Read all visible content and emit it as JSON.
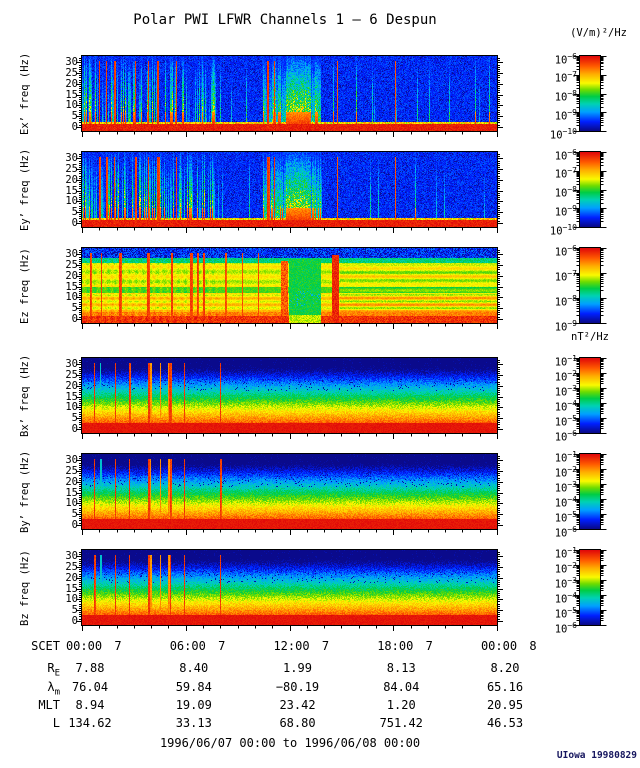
{
  "title": "Polar PWI LFWR Channels 1 — 6 Despun",
  "units": {
    "electric": "(V/m)²/Hz",
    "magnetic": "nT²/Hz"
  },
  "caption": "1996/06/07 00:00 to 1996/06/08 00:00",
  "credit": "UIowa 19980829",
  "chart_data": {
    "type": "heatmap",
    "title": "Polar PWI LFWR Channels 1 — 6 Despun",
    "subtitle": "Six stacked frequency-time spectrograms: despun electric (Ex', Ey', Ez) and magnetic (Bx', By', Bz) LFWR channels",
    "x_axis": {
      "label": "SCET",
      "start": "1996/06/07 00:00",
      "end": "1996/06/08 00:00",
      "major_ticks": [
        "00:00",
        "06:00",
        "12:00",
        "18:00",
        "00:00"
      ],
      "major_tick_days": [
        "7",
        "7",
        "7",
        "7",
        "8"
      ],
      "minor_tick_interval_hours": 1
    },
    "y_axis": {
      "units": "Hz",
      "ticks": [
        0,
        5,
        10,
        15,
        20,
        25,
        30
      ],
      "minor_tick_interval_hz": 1,
      "range_hz": [
        0,
        32
      ]
    },
    "legend_position": "right colorbars, one per panel",
    "panels": [
      {
        "id": "ex",
        "ylabel": "Ex’ freq (Hz)",
        "quantity": "electric",
        "colorbar_units": "(V/m)²/Hz",
        "colorbar_decade_labels": [
          -6,
          -7,
          -8,
          -9,
          -10
        ],
        "texture": "E",
        "seed": 11,
        "description": "Dark blue background; dense cyan/green burst columns 00:00–08:00 and around noon; intense red patch ~11:45–13:15; thin red artifact lines; solid red band below ~2 Hz"
      },
      {
        "id": "ey",
        "ylabel": "Ey’ freq (Hz)",
        "quantity": "electric",
        "colorbar_units": "(V/m)²/Hz",
        "colorbar_decade_labels": [
          -6,
          -7,
          -8,
          -9,
          -10
        ],
        "texture": "E",
        "seed": 12,
        "description": "Same morphology as Ex' panel"
      },
      {
        "id": "ez",
        "ylabel": "Ez freq (Hz)",
        "quantity": "electric",
        "colorbar_units": "(V/m)²/Hz",
        "colorbar_decade_labels": [
          -6,
          -7,
          -8,
          -9
        ],
        "texture": "Ez",
        "seed": 13,
        "description": "Broadband yellow/orange with green band near 12–15 Hz; dark blue above ~28 Hz; many red artifact lines before 08:00; green low-intensity interval ~12:00–13:45; solid red stripe ~14:30; horizontal orange striping after 15:00"
      },
      {
        "id": "bx",
        "ylabel": "Bx’ freq (Hz)",
        "quantity": "magnetic",
        "colorbar_units": "nT²/Hz",
        "colorbar_decade_labels": [
          -1,
          -2,
          -3,
          -4,
          -5,
          -6
        ],
        "texture": "B",
        "seed": 14,
        "description": "Smooth power-law falloff: red below ~4 Hz through yellow/green mid band to speckled dark blue above ~20 Hz; colored artifact lines before ~08:00"
      },
      {
        "id": "by",
        "ylabel": "By’ freq (Hz)",
        "quantity": "magnetic",
        "colorbar_units": "nT²/Hz",
        "colorbar_decade_labels": [
          -1,
          -2,
          -3,
          -4,
          -5,
          -6
        ],
        "texture": "B",
        "seed": 15,
        "description": "Same morphology as Bx' panel"
      },
      {
        "id": "bz",
        "ylabel": "Bz freq (Hz)",
        "quantity": "magnetic",
        "colorbar_units": "nT²/Hz",
        "colorbar_decade_labels": [
          -1,
          -2,
          -3,
          -4,
          -5,
          -6
        ],
        "texture": "B",
        "seed": 16,
        "description": "Same morphology as Bx' panel"
      }
    ],
    "ephemeris_rows": [
      {
        "label": "SCET",
        "sub": "",
        "type": "time",
        "times": [
          "00:00",
          "06:00",
          "12:00",
          "18:00",
          "00:00"
        ],
        "days": [
          "7",
          "7",
          "7",
          "7",
          "8"
        ]
      },
      {
        "label": "R",
        "sub": "E",
        "values": [
          "7.88",
          "8.40",
          "1.99",
          "8.13",
          "8.20"
        ]
      },
      {
        "label": "λ",
        "sub": "m",
        "values": [
          "76.04",
          "59.84",
          "-80.19",
          "84.04",
          "65.16"
        ]
      },
      {
        "label": "MLT",
        "sub": "",
        "values": [
          "8.94",
          "19.09",
          "23.42",
          "1.20",
          "20.95"
        ]
      },
      {
        "label": "L",
        "sub": "",
        "values": [
          "134.62",
          "33.13",
          "68.80",
          "751.42",
          "46.53"
        ]
      }
    ],
    "colormap": [
      {
        "v": 0.0,
        "hex": "#0a0a8c"
      },
      {
        "v": 0.12,
        "hex": "#0020ff"
      },
      {
        "v": 0.25,
        "hex": "#00a0ff"
      },
      {
        "v": 0.36,
        "hex": "#00d2b4"
      },
      {
        "v": 0.46,
        "hex": "#00cd46"
      },
      {
        "v": 0.55,
        "hex": "#6edc00"
      },
      {
        "v": 0.64,
        "hex": "#fafa00"
      },
      {
        "v": 0.76,
        "hex": "#ffaf00"
      },
      {
        "v": 0.87,
        "hex": "#ff5a00"
      },
      {
        "v": 1.0,
        "hex": "#e10a0a"
      }
    ]
  }
}
